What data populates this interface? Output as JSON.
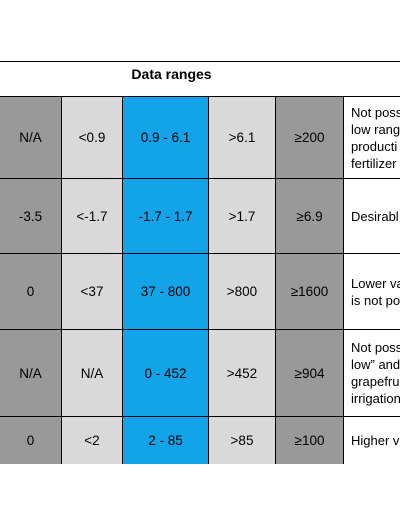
{
  "header": {
    "title": "Data ranges"
  },
  "rows": [
    {
      "c1": "N/A",
      "c2": "<0.9",
      "c3": "0.9 - 6.1",
      "c4": ">6.1",
      "c5": "≥200",
      "note": [
        "Not poss",
        "low rang",
        "producti",
        "fertilizer"
      ]
    },
    {
      "c1": "-3.5",
      "c2": "<-1.7",
      "c3": "-1.7 - 1.7",
      "c4": ">1.7",
      "c5": "≥6.9",
      "note": [
        "Desirabl"
      ]
    },
    {
      "c1": "0",
      "c2": "<37",
      "c3": "37 - 800",
      "c4": ">800",
      "c5": "≥1600",
      "note": [
        "Lower va",
        "is not po"
      ]
    },
    {
      "c1": "N/A",
      "c2": "N/A",
      "c3": "0 - 452",
      "c4": ">452",
      "c5": "≥904",
      "note": [
        "Not poss",
        "low” and",
        "grapefru",
        "irrigation"
      ]
    },
    {
      "c1": "0",
      "c2": "<2",
      "c3": "2 - 85",
      "c4": ">85",
      "c5": "≥100",
      "note": [
        "Higher v"
      ]
    }
  ]
}
